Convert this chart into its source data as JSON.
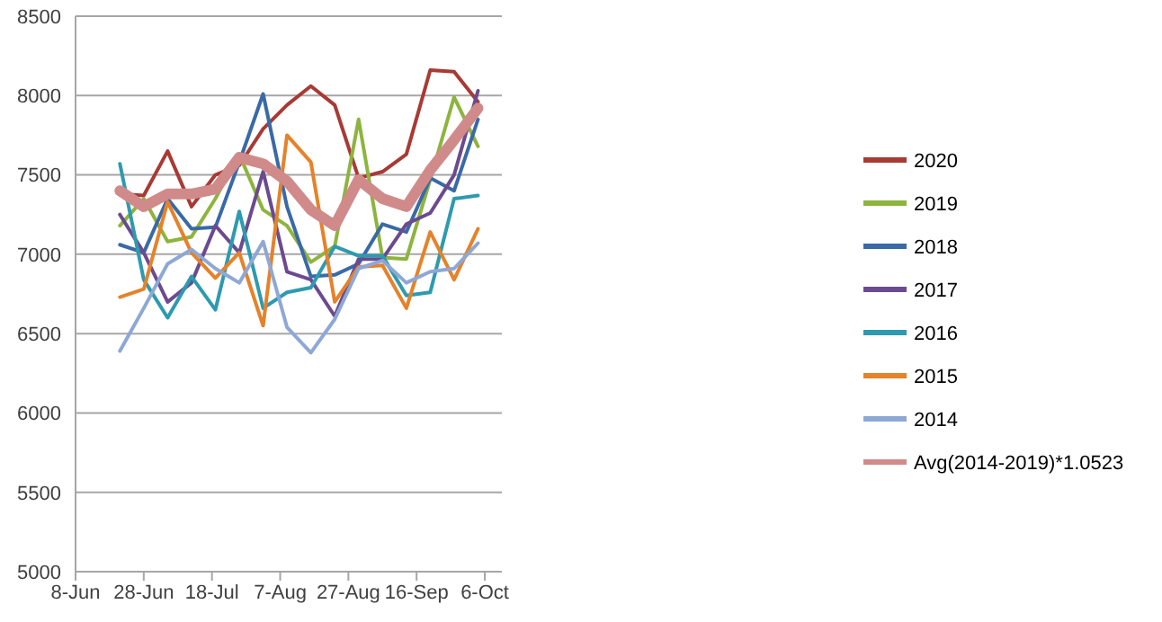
{
  "chart_data": {
    "type": "line",
    "x": [
      "--06-21",
      "--06-28",
      "--07-05",
      "--07-12",
      "--07-19",
      "--07-26",
      "--08-02",
      "--08-09",
      "--08-16",
      "--08-23",
      "--08-30",
      "--09-06",
      "--09-13",
      "--09-20",
      "--09-27",
      "--10-04"
    ],
    "series": [
      {
        "name": "2020",
        "color": "#a83a35",
        "values": [
          7380,
          7370,
          7650,
          7300,
          7500,
          7560,
          7790,
          7940,
          8060,
          7940,
          7480,
          7520,
          7630,
          8160,
          8150,
          7960
        ]
      },
      {
        "name": "2019",
        "color": "#8db43e",
        "values": [
          7180,
          7350,
          7080,
          7110,
          7350,
          7630,
          7280,
          7180,
          6950,
          7050,
          7850,
          6980,
          6970,
          7470,
          7990,
          7680
        ]
      },
      {
        "name": "2018",
        "color": "#3a6aa6",
        "values": [
          7060,
          7010,
          7350,
          7160,
          7170,
          7580,
          8010,
          7300,
          6860,
          6870,
          6940,
          7190,
          7140,
          7480,
          7400,
          7850
        ]
      },
      {
        "name": "2017",
        "color": "#6b4a8f",
        "values": [
          7250,
          7010,
          6700,
          6820,
          7180,
          7010,
          7520,
          6890,
          6840,
          6610,
          6970,
          6970,
          7190,
          7260,
          7500,
          8030
        ]
      },
      {
        "name": "2016",
        "color": "#2e9aaf",
        "values": [
          7570,
          6840,
          6600,
          6860,
          6650,
          7270,
          6660,
          6760,
          6790,
          7050,
          6990,
          6990,
          6740,
          6760,
          7350,
          7370
        ]
      },
      {
        "name": "2015",
        "color": "#e5822a",
        "values": [
          6730,
          6780,
          7330,
          7010,
          6850,
          7010,
          6550,
          7750,
          7580,
          6700,
          6920,
          6930,
          6660,
          7140,
          6840,
          7160
        ]
      },
      {
        "name": "2014",
        "color": "#8ea8d6",
        "values": [
          6390,
          6660,
          6940,
          7030,
          6910,
          6820,
          7080,
          6540,
          6380,
          6590,
          6910,
          6960,
          6820,
          6890,
          6910,
          7070
        ]
      },
      {
        "name": "Avg(2014-2019)*1.0523",
        "color": "#d08a8a",
        "values": [
          7400,
          7300,
          7380,
          7380,
          7410,
          7610,
          7570,
          7460,
          7280,
          7180,
          7470,
          7350,
          7300,
          7530,
          7720,
          7920
        ]
      }
    ],
    "xlim": [
      "--06-08",
      "--10-11"
    ],
    "xticks": [
      {
        "value": "--06-08",
        "label": "8-Jun"
      },
      {
        "value": "--06-28",
        "label": "28-Jun"
      },
      {
        "value": "--07-18",
        "label": "18-Jul"
      },
      {
        "value": "--08-07",
        "label": "7-Aug"
      },
      {
        "value": "--08-27",
        "label": "27-Aug"
      },
      {
        "value": "--09-16",
        "label": "16-Sep"
      },
      {
        "value": "--10-06",
        "label": "6-Oct"
      }
    ],
    "ylim": [
      5000,
      8500
    ],
    "yticks": [
      5000,
      5500,
      6000,
      6500,
      7000,
      7500,
      8000,
      8500
    ],
    "grid": "y",
    "legend": "right",
    "marker": "none",
    "line_style": "solid"
  }
}
